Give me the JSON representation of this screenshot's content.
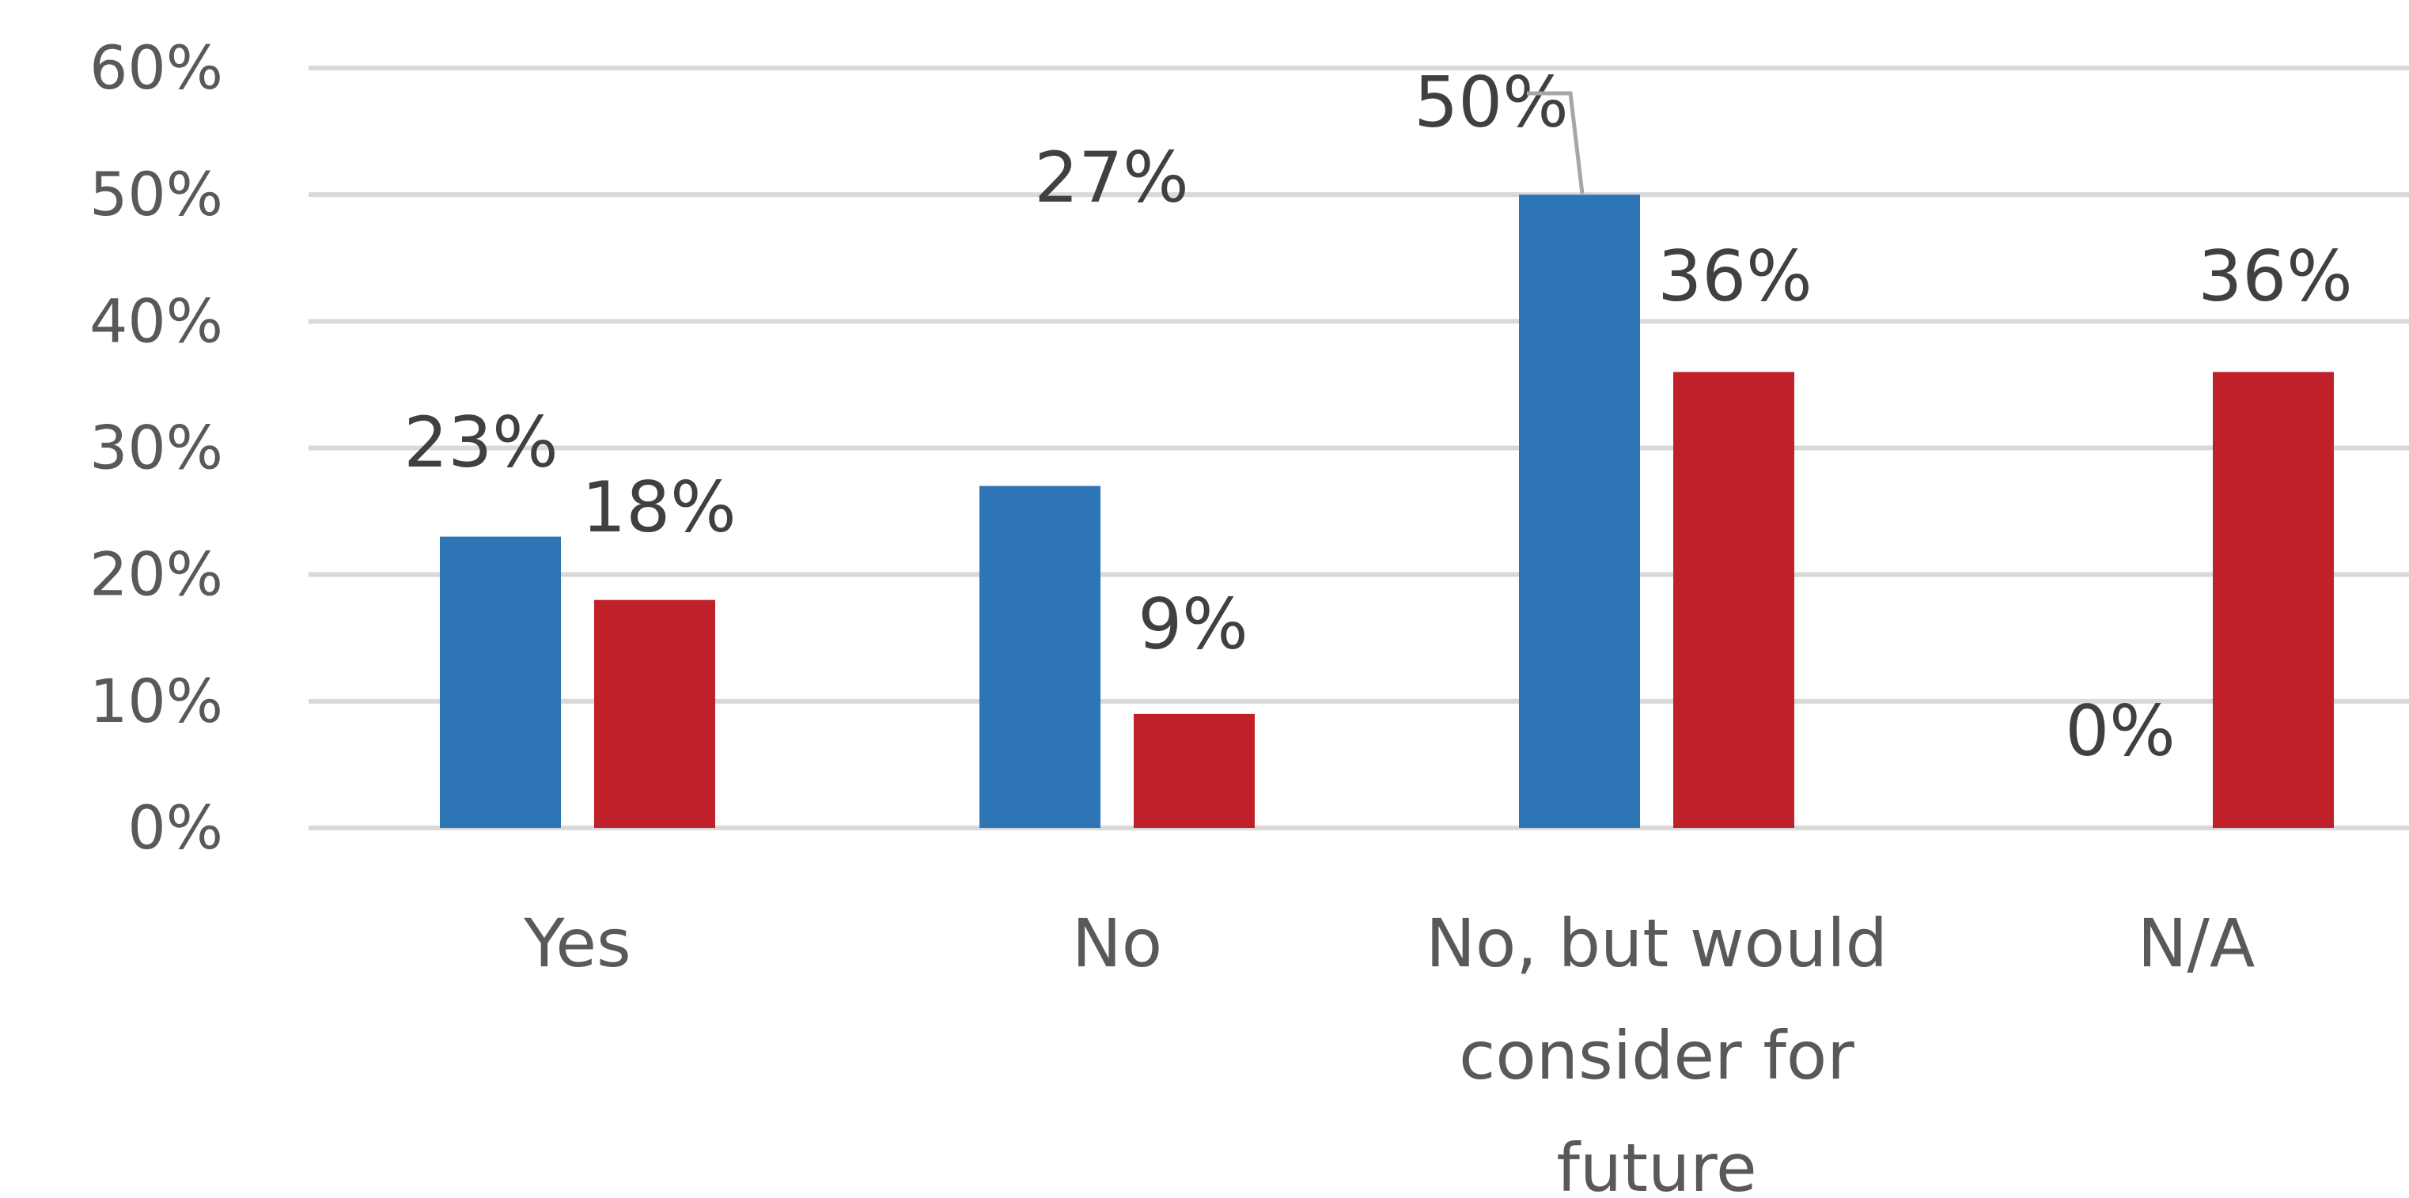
{
  "chart_data": {
    "type": "bar",
    "categories": [
      "Yes",
      "No",
      "No, but would consider for future",
      "N/A"
    ],
    "category_label_lines": [
      [
        "Yes"
      ],
      [
        "No"
      ],
      [
        "No, but would",
        "consider for",
        "future"
      ],
      [
        "N/A"
      ]
    ],
    "series": [
      {
        "values": [
          23,
          27,
          50,
          0
        ],
        "labels": [
          "23%",
          "27%",
          "50%",
          "0%"
        ],
        "color": "#2e75b6"
      },
      {
        "values": [
          18,
          9,
          36,
          36
        ],
        "labels": [
          "18%",
          "9%",
          "36%",
          "36%"
        ],
        "color": "#c0202a"
      }
    ],
    "ylim": [
      0,
      60
    ],
    "yticks": [
      "0%",
      "10%",
      "20%",
      "30%",
      "40%",
      "50%",
      "60%"
    ],
    "ytick_values": [
      0,
      10,
      20,
      30,
      40,
      50,
      60
    ],
    "grid": true,
    "legend": "none",
    "gridline_color": "#d9d9d9",
    "text_color": "#595959"
  }
}
